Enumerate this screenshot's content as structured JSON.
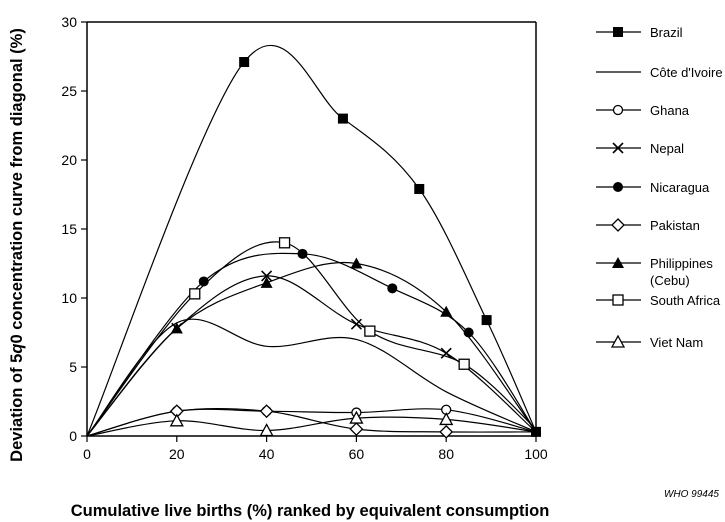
{
  "chart_data": {
    "type": "line",
    "title": "",
    "xlabel": "Cumulative live births (%) ranked by equivalent consumption",
    "ylabel_parts": [
      "Deviation of 5",
      "q",
      "0 concentration curve from diagonal (%)"
    ],
    "xlim": [
      0,
      100
    ],
    "ylim": [
      0,
      30
    ],
    "xticks": [
      "0",
      "20",
      "40",
      "60",
      "80",
      "100"
    ],
    "yticks": [
      "0",
      "5",
      "10",
      "15",
      "20",
      "25",
      "30"
    ],
    "grid": false,
    "legend_position": "right",
    "series": [
      {
        "name": "Brazil",
        "marker": "square-filled",
        "points": [
          [
            0,
            0
          ],
          [
            35,
            27.1
          ],
          [
            57,
            23
          ],
          [
            74,
            17.9
          ],
          [
            89,
            8.4
          ],
          [
            100,
            0.3
          ]
        ]
      },
      {
        "name": "Côte d'Ivoire",
        "marker": "none",
        "points": [
          [
            0,
            0
          ],
          [
            20,
            8.2
          ],
          [
            40,
            6.5
          ],
          [
            60,
            7
          ],
          [
            80,
            3.2
          ],
          [
            100,
            0.3
          ]
        ]
      },
      {
        "name": "Ghana",
        "marker": "circle-open",
        "points": [
          [
            0,
            0
          ],
          [
            20,
            1.8
          ],
          [
            40,
            1.8
          ],
          [
            60,
            1.7
          ],
          [
            80,
            1.9
          ],
          [
            100,
            0.3
          ]
        ]
      },
      {
        "name": "Nepal",
        "marker": "x",
        "points": [
          [
            0,
            0
          ],
          [
            20,
            7.8
          ],
          [
            40,
            11.6
          ],
          [
            60,
            8.1
          ],
          [
            80,
            6
          ],
          [
            100,
            0.3
          ]
        ]
      },
      {
        "name": "Nicaragua",
        "marker": "circle-filled",
        "points": [
          [
            0,
            0
          ],
          [
            26,
            11.2
          ],
          [
            48,
            13.2
          ],
          [
            68,
            10.7
          ],
          [
            85,
            7.5
          ],
          [
            100,
            0.3
          ]
        ]
      },
      {
        "name": "Pakistan",
        "marker": "diamond-open",
        "points": [
          [
            0,
            0
          ],
          [
            20,
            1.8
          ],
          [
            40,
            1.8
          ],
          [
            60,
            0.5
          ],
          [
            80,
            0.3
          ],
          [
            100,
            0.3
          ]
        ]
      },
      {
        "name": "Philippines (Cebu)",
        "marker": "triangle-filled",
        "points": [
          [
            0,
            0
          ],
          [
            20,
            7.8
          ],
          [
            40,
            11.1
          ],
          [
            60,
            12.5
          ],
          [
            80,
            9
          ],
          [
            100,
            0.3
          ]
        ]
      },
      {
        "name": "South Africa",
        "marker": "square-open",
        "points": [
          [
            0,
            0
          ],
          [
            24,
            10.3
          ],
          [
            44,
            14
          ],
          [
            63,
            7.6
          ],
          [
            84,
            5.2
          ],
          [
            100,
            0.5
          ]
        ]
      },
      {
        "name": "Viet Nam",
        "marker": "triangle-open",
        "points": [
          [
            0,
            0
          ],
          [
            20,
            1.1
          ],
          [
            40,
            0.4
          ],
          [
            60,
            1.3
          ],
          [
            80,
            1.2
          ],
          [
            100,
            0.3
          ]
        ]
      }
    ],
    "legend": [
      {
        "label": "Brazil",
        "marker": "square-filled"
      },
      {
        "label": "Côte d'Ivoire",
        "marker": "none"
      },
      {
        "label": "Ghana",
        "marker": "circle-open"
      },
      {
        "label": "Nepal",
        "marker": "x"
      },
      {
        "label": "Nicaragua",
        "marker": "circle-filled"
      },
      {
        "label": "Pakistan",
        "marker": "diamond-open"
      },
      {
        "label": "Philippines",
        "label2": "(Cebu)",
        "marker": "triangle-filled"
      },
      {
        "label": "South Africa",
        "marker": "square-open"
      },
      {
        "label": "Viet Nam",
        "marker": "triangle-open"
      }
    ]
  },
  "credit": "WHO 99445"
}
